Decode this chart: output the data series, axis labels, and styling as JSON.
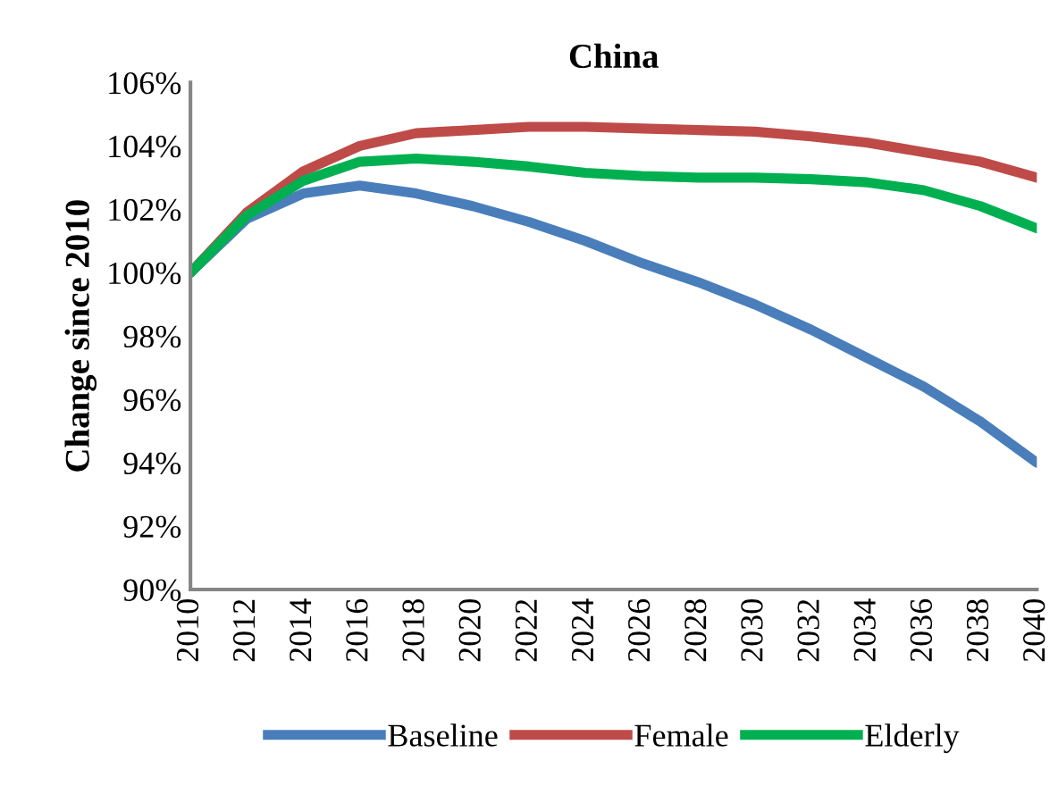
{
  "chart_data": {
    "type": "line",
    "title": "China",
    "ylabel": "Change since 2010",
    "x": [
      2010,
      2012,
      2014,
      2016,
      2018,
      2020,
      2022,
      2024,
      2026,
      2028,
      2030,
      2032,
      2034,
      2036,
      2038,
      2040
    ],
    "series": [
      {
        "name": "Baseline",
        "color": "#4a7ebb",
        "values": [
          100,
          101.7,
          102.5,
          102.75,
          102.5,
          102.1,
          101.6,
          101.0,
          100.3,
          99.7,
          99.0,
          98.2,
          97.3,
          96.4,
          95.3,
          94.0
        ]
      },
      {
        "name": "Female",
        "color": "#be4b48",
        "values": [
          100,
          101.9,
          103.2,
          104.0,
          104.4,
          104.5,
          104.6,
          104.6,
          104.55,
          104.5,
          104.45,
          104.3,
          104.1,
          103.8,
          103.5,
          103.0
        ]
      },
      {
        "name": "Elderly",
        "color": "#00b050",
        "values": [
          100,
          101.8,
          102.9,
          103.5,
          103.6,
          103.5,
          103.35,
          103.15,
          103.05,
          103.0,
          103.0,
          102.95,
          102.85,
          102.6,
          102.1,
          101.4
        ]
      }
    ],
    "xlim": [
      2010,
      2040
    ],
    "xticks": [
      2010,
      2012,
      2014,
      2016,
      2018,
      2020,
      2022,
      2024,
      2026,
      2028,
      2030,
      2032,
      2034,
      2036,
      2038,
      2040
    ],
    "ylim": [
      90,
      106
    ],
    "yticks": [
      {
        "value": 90,
        "label": "90%"
      },
      {
        "value": 92,
        "label": "92%"
      },
      {
        "value": 94,
        "label": "94%"
      },
      {
        "value": 96,
        "label": "96%"
      },
      {
        "value": 98,
        "label": "98%"
      },
      {
        "value": 100,
        "label": "100%"
      },
      {
        "value": 102,
        "label": "102%"
      },
      {
        "value": 104,
        "label": "104%"
      },
      {
        "value": 106,
        "label": "106%"
      }
    ],
    "legend": "bottom",
    "grid": false,
    "marker": "none",
    "line_style": "solid"
  }
}
